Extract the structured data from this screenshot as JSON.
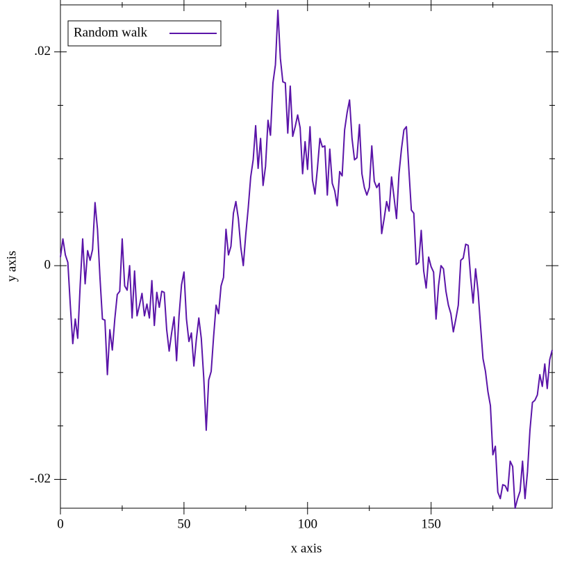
{
  "chart_data": {
    "type": "line",
    "x_label": "x axis",
    "y_label": "y axis",
    "xlim": [
      0,
      199
    ],
    "ylim": [
      -0.0227,
      0.0244
    ],
    "xticks": [
      0,
      50,
      100,
      150
    ],
    "x_minor_ticks": [
      25,
      75,
      125,
      175
    ],
    "yticks": [
      {
        "value": -0.02,
        "label": "-.02"
      },
      0,
      {
        "value": 0.02,
        "label": ".02"
      }
    ],
    "y_minor_ticks": [
      -0.015,
      -0.01,
      -0.005,
      0.005,
      0.01,
      0.015
    ],
    "legend": "top-left",
    "x": [
      0,
      1,
      2,
      3,
      4,
      5,
      6,
      7,
      8,
      9,
      10,
      11,
      12,
      13,
      14,
      15,
      16,
      17,
      18,
      19,
      20,
      21,
      22,
      23,
      24,
      25,
      26,
      27,
      28,
      29,
      30,
      31,
      32,
      33,
      34,
      35,
      36,
      37,
      38,
      39,
      40,
      41,
      42,
      43,
      44,
      45,
      46,
      47,
      48,
      49,
      50,
      51,
      52,
      53,
      54,
      55,
      56,
      57,
      58,
      59,
      60,
      61,
      62,
      63,
      64,
      65,
      66,
      67,
      68,
      69,
      70,
      71,
      72,
      73,
      74,
      75,
      76,
      77,
      78,
      79,
      80,
      81,
      82,
      83,
      84,
      85,
      86,
      87,
      88,
      89,
      90,
      91,
      92,
      93,
      94,
      95,
      96,
      97,
      98,
      99,
      100,
      101,
      102,
      103,
      104,
      105,
      106,
      107,
      108,
      109,
      110,
      111,
      112,
      113,
      114,
      115,
      116,
      117,
      118,
      119,
      120,
      121,
      122,
      123,
      124,
      125,
      126,
      127,
      128,
      129,
      130,
      131,
      132,
      133,
      134,
      135,
      136,
      137,
      138,
      139,
      140,
      141,
      142,
      143,
      144,
      145,
      146,
      147,
      148,
      149,
      150,
      151,
      152,
      153,
      154,
      155,
      156,
      157,
      158,
      159,
      160,
      161,
      162,
      163,
      164,
      165,
      166,
      167,
      168,
      169,
      170,
      171,
      172,
      173,
      174,
      175,
      176,
      177,
      178,
      179,
      180,
      181,
      182,
      183,
      184,
      185,
      186,
      187,
      188,
      189,
      190,
      191,
      192,
      193,
      194,
      195,
      196,
      197,
      198,
      199
    ],
    "series": [
      {
        "name": "Random walk",
        "color": "#5a14a8",
        "values": [
          0.0008,
          0.0025,
          0.001,
          0.0003,
          -0.0037,
          -0.0073,
          -0.005,
          -0.0068,
          -0.0018,
          0.0025,
          -0.0017,
          0.0014,
          0.0005,
          0.0015,
          0.0059,
          0.0034,
          -0.0011,
          -0.005,
          -0.0051,
          -0.0102,
          -0.006,
          -0.0079,
          -0.005,
          -0.0027,
          -0.0024,
          0.0025,
          -0.0019,
          -0.0023,
          0,
          -0.0049,
          -0.0005,
          -0.0047,
          -0.0037,
          -0.0026,
          -0.0047,
          -0.0036,
          -0.0049,
          -0.0014,
          -0.0056,
          -0.0025,
          -0.0039,
          -0.0024,
          -0.0025,
          -0.006,
          -0.008,
          -0.0063,
          -0.0048,
          -0.0089,
          -0.0047,
          -0.0018,
          -0.0006,
          -0.005,
          -0.0071,
          -0.0063,
          -0.0094,
          -0.0069,
          -0.0049,
          -0.0068,
          -0.0105,
          -0.0154,
          -0.0107,
          -0.0099,
          -0.0066,
          -0.0037,
          -0.0045,
          -0.0019,
          -0.0011,
          0.0034,
          0.001,
          0.0018,
          0.0049,
          0.006,
          0.0044,
          0.0017,
          0,
          0.0029,
          0.0054,
          0.0083,
          0.0099,
          0.0131,
          0.0091,
          0.0119,
          0.0075,
          0.0093,
          0.0136,
          0.0122,
          0.0171,
          0.0188,
          0.0239,
          0.0194,
          0.0172,
          0.0171,
          0.0124,
          0.0168,
          0.0121,
          0.013,
          0.0141,
          0.0129,
          0.0086,
          0.0116,
          0.009,
          0.013,
          0.008,
          0.0067,
          0.0091,
          0.0119,
          0.0111,
          0.0112,
          0.0066,
          0.0109,
          0.0077,
          0.007,
          0.0056,
          0.0088,
          0.0084,
          0.0127,
          0.0143,
          0.0155,
          0.0119,
          0.0099,
          0.0101,
          0.0132,
          0.0086,
          0.0073,
          0.0066,
          0.0073,
          0.0112,
          0.0079,
          0.0073,
          0.0077,
          0.003,
          0.0044,
          0.006,
          0.0051,
          0.0083,
          0.0064,
          0.0044,
          0.0086,
          0.0109,
          0.0127,
          0.013,
          0.009,
          0.0052,
          0.0049,
          0.0001,
          0.0003,
          0.0033,
          -0.0005,
          -0.0021,
          0.0008,
          -0.0001,
          -0.0006,
          -0.005,
          -0.0019,
          0,
          -0.0003,
          -0.0024,
          -0.0037,
          -0.0045,
          -0.0062,
          -0.005,
          -0.0037,
          0.0005,
          0.0007,
          0.002,
          0.0019,
          -0.0011,
          -0.0035,
          -0.0003,
          -0.0024,
          -0.0056,
          -0.0087,
          -0.0099,
          -0.0118,
          -0.0131,
          -0.0177,
          -0.0169,
          -0.0212,
          -0.0218,
          -0.0205,
          -0.0206,
          -0.0211,
          -0.0183,
          -0.0188,
          -0.0227,
          -0.0218,
          -0.0211,
          -0.0183,
          -0.0218,
          -0.0193,
          -0.0154,
          -0.0128,
          -0.0126,
          -0.0121,
          -0.0102,
          -0.0113,
          -0.0092,
          -0.0115,
          -0.0088,
          -0.0079
        ]
      }
    ]
  }
}
